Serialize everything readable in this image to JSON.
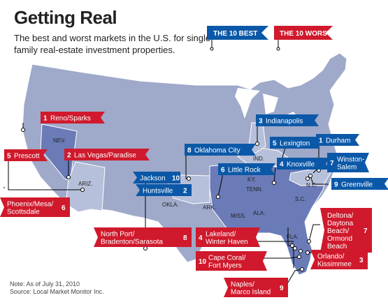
{
  "header": {
    "title": "Getting Real",
    "subtitle": "The best and worst markets in the U.S. for single-family real-estate investment properties."
  },
  "legend": {
    "best": "THE 10 BEST",
    "worst": "THE 10 WORST"
  },
  "colors": {
    "best": "#0b58a8",
    "worst": "#d0192c",
    "land_base": "#9fa9c9",
    "land_highlight": "#6a7bb7",
    "land_pale": "#b7c0da",
    "water": "#ffffff"
  },
  "state_labels": {
    "nev": "NEV.",
    "ariz": "ARIZ.",
    "okla": "OKLA.",
    "ark": "ARK.",
    "miss": "MISS.",
    "ala": "ALA.",
    "tenn": "TENN.",
    "ky": "KY.",
    "ind": "IND.",
    "nc": "N.C.",
    "sc": "S.C.",
    "fla": "FLA."
  },
  "best_markets": [
    {
      "rank": "1",
      "name": "Durham"
    },
    {
      "rank": "2",
      "name": "Huntsville"
    },
    {
      "rank": "3",
      "name": "Indianapolis"
    },
    {
      "rank": "4",
      "name": "Knoxville"
    },
    {
      "rank": "5",
      "name": "Lexington"
    },
    {
      "rank": "6",
      "name": "Little Rock"
    },
    {
      "rank": "7",
      "name": "Winston-\nSalem"
    },
    {
      "rank": "8",
      "name": "Oklahoma City"
    },
    {
      "rank": "9",
      "name": "Greenville"
    },
    {
      "rank": "10",
      "name": "Jackson"
    }
  ],
  "worst_markets": [
    {
      "rank": "1",
      "name": "Reno/Sparks"
    },
    {
      "rank": "2",
      "name": "Las Vegas/Paradise"
    },
    {
      "rank": "3",
      "name": "Orlando/\nKissimmee"
    },
    {
      "rank": "4",
      "name": "Lakeland/\nWinter Haven"
    },
    {
      "rank": "5",
      "name": "Prescott"
    },
    {
      "rank": "6",
      "name": "Phoenix/Mesa/\nScottsdale"
    },
    {
      "rank": "7",
      "name": "Deltona/\nDaytona\nBeach/\nOrmond\nBeach"
    },
    {
      "rank": "8",
      "name": "North Port/\nBradenton/Sarasota"
    },
    {
      "rank": "9",
      "name": "Naples/\nMarco Island"
    },
    {
      "rank": "10",
      "name": "Cape Coral/\nFort Myers"
    }
  ],
  "note": {
    "line1": "Note: As of July 31, 2010",
    "line2": "Source: Local Market Monitor Inc."
  }
}
